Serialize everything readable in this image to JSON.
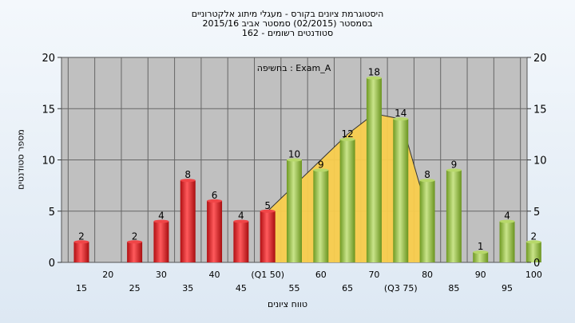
{
  "header": {
    "line1": "היסטוגרמת ציונים בקורס - מעגלי מיתוג אלקטרוניים",
    "line2": "בסמסטר   (02/2015)  סמסטר אביב 2015/16",
    "line3": "סטודנטים רשומים - 162"
  },
  "chart_data": {
    "type": "bar",
    "title": "",
    "xlabel": "טווח ציונים",
    "ylabel": "מספר סטודנטים",
    "ylim": [
      0,
      20
    ],
    "yticks": [
      0,
      5,
      10,
      15,
      20
    ],
    "grid": true,
    "annotation": "בחשיפה : Exam_A",
    "categories": [
      "15",
      "20",
      "25",
      "30",
      "35",
      "40",
      "45",
      "(Q1 50)",
      "55",
      "60",
      "65",
      "70",
      "(Q3 75)",
      "80",
      "85",
      "90",
      "95",
      "100"
    ],
    "values": [
      2,
      0,
      2,
      4,
      8,
      6,
      4,
      5,
      10,
      9,
      12,
      18,
      14,
      8,
      9,
      1,
      4,
      2
    ],
    "series_colors": {
      "below_pass": "#e8262a",
      "pass": "#9dc24a",
      "curve_fill": "#f9cd4d",
      "curve_line": "#333333"
    },
    "pass_from_category": "(Q1 50)",
    "curve": {
      "categories": [
        "(Q1 50)",
        "55",
        "60",
        "65",
        "70",
        "(Q3 75)",
        "80"
      ],
      "values": [
        5,
        7.5,
        10,
        12.5,
        14.5,
        14,
        5
      ]
    }
  }
}
